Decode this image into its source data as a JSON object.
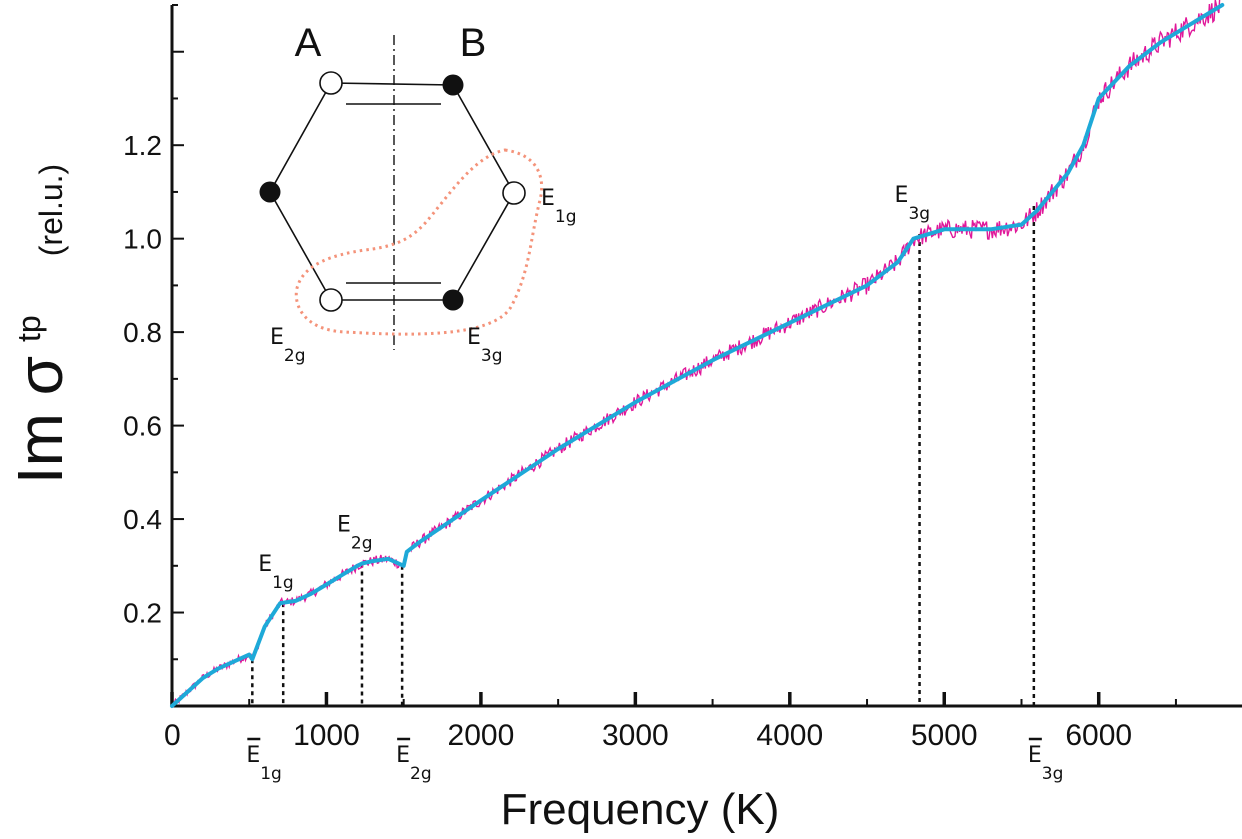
{
  "chart_data": {
    "type": "line",
    "xlabel": "Frequency (K)",
    "ylabel": "Im σ",
    "ylabel_superscript": "tp",
    "ylabel_unit": "(rel.u.)",
    "xlim": [
      0,
      6850
    ],
    "ylim": [
      0,
      1.5
    ],
    "x_ticks": [
      0,
      1000,
      2000,
      3000,
      4000,
      5000,
      6000
    ],
    "x_tick_labels": [
      "0",
      "1000",
      "2000",
      "3000",
      "4000",
      "5000",
      "6000"
    ],
    "y_ticks": [
      0.2,
      0.4,
      0.6,
      0.8,
      1.0,
      1.2
    ],
    "y_tick_labels": [
      "0.2",
      "0.4",
      "0.6",
      "0.8",
      "1.0",
      "1.2"
    ],
    "grid": false,
    "series": [
      {
        "style": "noisy-data",
        "color": "#e0189a",
        "x": [
          0,
          100,
          200,
          300,
          400,
          500,
          520,
          600,
          700,
          800,
          900,
          1000,
          1100,
          1200,
          1230,
          1300,
          1400,
          1500,
          1520,
          1600,
          2000,
          2500,
          3000,
          3500,
          4000,
          4500,
          4700,
          4800,
          5000,
          5300,
          5500,
          5600,
          5700,
          5800,
          5900,
          6000,
          6200,
          6400,
          6600,
          6800
        ],
        "y": [
          0.0,
          0.03,
          0.06,
          0.08,
          0.095,
          0.11,
          0.1,
          0.17,
          0.22,
          0.225,
          0.24,
          0.26,
          0.28,
          0.3,
          0.305,
          0.31,
          0.315,
          0.3,
          0.33,
          0.35,
          0.44,
          0.55,
          0.65,
          0.74,
          0.82,
          0.9,
          0.95,
          1.0,
          1.02,
          1.02,
          1.03,
          1.06,
          1.1,
          1.14,
          1.2,
          1.3,
          1.37,
          1.42,
          1.46,
          1.5
        ],
        "noise_amplitude": 0.025
      },
      {
        "style": "smooth-fit",
        "color": "#1ea9d8",
        "x": [
          0,
          100,
          200,
          300,
          400,
          500,
          520,
          600,
          700,
          800,
          900,
          1000,
          1100,
          1200,
          1230,
          1300,
          1400,
          1500,
          1520,
          1600,
          2000,
          2500,
          3000,
          3500,
          4000,
          4500,
          4700,
          4800,
          5000,
          5300,
          5500,
          5600,
          5700,
          5800,
          5900,
          6000,
          6200,
          6400,
          6600,
          6800
        ],
        "y": [
          0.0,
          0.03,
          0.06,
          0.08,
          0.095,
          0.11,
          0.1,
          0.17,
          0.22,
          0.225,
          0.24,
          0.26,
          0.28,
          0.3,
          0.305,
          0.31,
          0.315,
          0.3,
          0.33,
          0.35,
          0.44,
          0.55,
          0.65,
          0.74,
          0.82,
          0.9,
          0.95,
          1.0,
          1.02,
          1.02,
          1.03,
          1.06,
          1.1,
          1.14,
          1.2,
          1.3,
          1.37,
          1.42,
          1.46,
          1.5
        ]
      }
    ],
    "markers": [
      {
        "x": 520,
        "y": 0.1,
        "label": "E",
        "sub": "1g",
        "bar": true,
        "label_position": "below-axis"
      },
      {
        "x": 720,
        "y": 0.22,
        "label": "E",
        "sub": "1g",
        "bar": false,
        "label_position": "above"
      },
      {
        "x": 1230,
        "y": 0.305,
        "label": "E",
        "sub": "2g",
        "bar": false,
        "label_position": "above"
      },
      {
        "x": 1490,
        "y": 0.3,
        "label": "E",
        "sub": "2g",
        "bar": true,
        "label_position": "below-axis"
      },
      {
        "x": 4840,
        "y": 1.01,
        "label": "E",
        "sub": "3g",
        "bar": false,
        "label_position": "above"
      },
      {
        "x": 5580,
        "y": 1.07,
        "label": "E",
        "sub": "3g",
        "bar": true,
        "label_position": "below-axis"
      }
    ],
    "inset": {
      "type": "diagram",
      "sublattice_labels": [
        "A",
        "B"
      ],
      "mode_labels": [
        {
          "label": "E",
          "sub": "1g"
        },
        {
          "label": "E",
          "sub": "2g"
        },
        {
          "label": "E",
          "sub": "3g"
        }
      ],
      "outline_color": "#f4937a"
    }
  }
}
